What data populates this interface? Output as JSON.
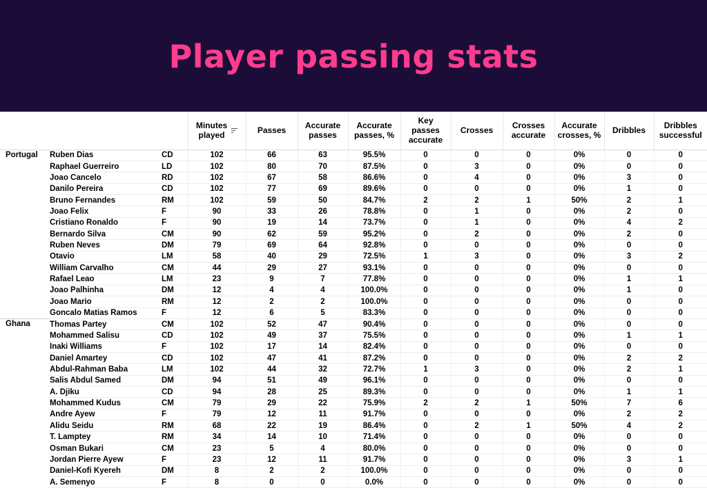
{
  "title": "Player passing stats",
  "columns": {
    "minutes": [
      "Minutes",
      "played"
    ],
    "passes": "Passes",
    "accurate_passes": [
      "Accurate",
      "passes"
    ],
    "accurate_passes_pct": [
      "Accurate",
      "passes, %"
    ],
    "key_passes": [
      "Key",
      "passes",
      "accurate"
    ],
    "crosses": "Crosses",
    "crosses_accurate": [
      "Crosses",
      "accurate"
    ],
    "accurate_crosses_pct": [
      "Accurate",
      "crosses, %"
    ],
    "dribbles": "Dribbles",
    "dribbles_successful": [
      "Dribbles",
      "successful"
    ]
  },
  "groups": [
    {
      "team": "Portugal",
      "rows": [
        [
          "Ruben Dias",
          "CD",
          "102",
          "66",
          "63",
          "95.5%",
          "0",
          "0",
          "0",
          "0%",
          "0",
          "0"
        ],
        [
          "Raphael Guerreiro",
          "LD",
          "102",
          "80",
          "70",
          "87.5%",
          "0",
          "3",
          "0",
          "0%",
          "0",
          "0"
        ],
        [
          "Joao Cancelo",
          "RD",
          "102",
          "67",
          "58",
          "86.6%",
          "0",
          "4",
          "0",
          "0%",
          "3",
          "0"
        ],
        [
          "Danilo Pereira",
          "CD",
          "102",
          "77",
          "69",
          "89.6%",
          "0",
          "0",
          "0",
          "0%",
          "1",
          "0"
        ],
        [
          "Bruno Fernandes",
          "RM",
          "102",
          "59",
          "50",
          "84.7%",
          "2",
          "2",
          "1",
          "50%",
          "2",
          "1"
        ],
        [
          "Joao Felix",
          "F",
          "90",
          "33",
          "26",
          "78.8%",
          "0",
          "1",
          "0",
          "0%",
          "2",
          "0"
        ],
        [
          "Cristiano Ronaldo",
          "F",
          "90",
          "19",
          "14",
          "73.7%",
          "0",
          "1",
          "0",
          "0%",
          "4",
          "2"
        ],
        [
          "Bernardo Silva",
          "CM",
          "90",
          "62",
          "59",
          "95.2%",
          "0",
          "2",
          "0",
          "0%",
          "2",
          "0"
        ],
        [
          "Ruben Neves",
          "DM",
          "79",
          "69",
          "64",
          "92.8%",
          "0",
          "0",
          "0",
          "0%",
          "0",
          "0"
        ],
        [
          "Otavio",
          "LM",
          "58",
          "40",
          "29",
          "72.5%",
          "1",
          "3",
          "0",
          "0%",
          "3",
          "2"
        ],
        [
          "William Carvalho",
          "CM",
          "44",
          "29",
          "27",
          "93.1%",
          "0",
          "0",
          "0",
          "0%",
          "0",
          "0"
        ],
        [
          "Rafael Leao",
          "LM",
          "23",
          "9",
          "7",
          "77.8%",
          "0",
          "0",
          "0",
          "0%",
          "1",
          "1"
        ],
        [
          "Joao Palhinha",
          "DM",
          "12",
          "4",
          "4",
          "100.0%",
          "0",
          "0",
          "0",
          "0%",
          "1",
          "0"
        ],
        [
          "Joao Mario",
          "RM",
          "12",
          "2",
          "2",
          "100.0%",
          "0",
          "0",
          "0",
          "0%",
          "0",
          "0"
        ],
        [
          "Goncalo Matias Ramos",
          "F",
          "12",
          "6",
          "5",
          "83.3%",
          "0",
          "0",
          "0",
          "0%",
          "0",
          "0"
        ]
      ]
    },
    {
      "team": "Ghana",
      "rows": [
        [
          "Thomas Partey",
          "CM",
          "102",
          "52",
          "47",
          "90.4%",
          "0",
          "0",
          "0",
          "0%",
          "0",
          "0"
        ],
        [
          "Mohammed Salisu",
          "CD",
          "102",
          "49",
          "37",
          "75.5%",
          "0",
          "0",
          "0",
          "0%",
          "1",
          "1"
        ],
        [
          "Inaki Williams",
          "F",
          "102",
          "17",
          "14",
          "82.4%",
          "0",
          "0",
          "0",
          "0%",
          "0",
          "0"
        ],
        [
          "Daniel Amartey",
          "CD",
          "102",
          "47",
          "41",
          "87.2%",
          "0",
          "0",
          "0",
          "0%",
          "2",
          "2"
        ],
        [
          "Abdul-Rahman Baba",
          "LM",
          "102",
          "44",
          "32",
          "72.7%",
          "1",
          "3",
          "0",
          "0%",
          "2",
          "1"
        ],
        [
          "Salis Abdul Samed",
          "DM",
          "94",
          "51",
          "49",
          "96.1%",
          "0",
          "0",
          "0",
          "0%",
          "0",
          "0"
        ],
        [
          "A. Djiku",
          "CD",
          "94",
          "28",
          "25",
          "89.3%",
          "0",
          "0",
          "0",
          "0%",
          "1",
          "1"
        ],
        [
          "Mohammed Kudus",
          "CM",
          "79",
          "29",
          "22",
          "75.9%",
          "2",
          "2",
          "1",
          "50%",
          "7",
          "6"
        ],
        [
          "Andre Ayew",
          "F",
          "79",
          "12",
          "11",
          "91.7%",
          "0",
          "0",
          "0",
          "0%",
          "2",
          "2"
        ],
        [
          "Alidu Seidu",
          "RM",
          "68",
          "22",
          "19",
          "86.4%",
          "0",
          "2",
          "1",
          "50%",
          "4",
          "2"
        ],
        [
          "T. Lamptey",
          "RM",
          "34",
          "14",
          "10",
          "71.4%",
          "0",
          "0",
          "0",
          "0%",
          "0",
          "0"
        ],
        [
          "Osman Bukari",
          "CM",
          "23",
          "5",
          "4",
          "80.0%",
          "0",
          "0",
          "0",
          "0%",
          "0",
          "0"
        ],
        [
          "Jordan Pierre Ayew",
          "F",
          "23",
          "12",
          "11",
          "91.7%",
          "0",
          "0",
          "0",
          "0%",
          "3",
          "1"
        ],
        [
          "Daniel-Kofi Kyereh",
          "DM",
          "8",
          "2",
          "2",
          "100.0%",
          "0",
          "0",
          "0",
          "0%",
          "0",
          "0"
        ],
        [
          "A. Semenyo",
          "F",
          "8",
          "0",
          "0",
          "0.0%",
          "0",
          "0",
          "0",
          "0%",
          "0",
          "0"
        ]
      ]
    }
  ],
  "colors": {
    "banner_bg": "#1c0c38",
    "title": "#ff3d8f"
  },
  "icons": {
    "sort": "sort-descending-icon"
  }
}
